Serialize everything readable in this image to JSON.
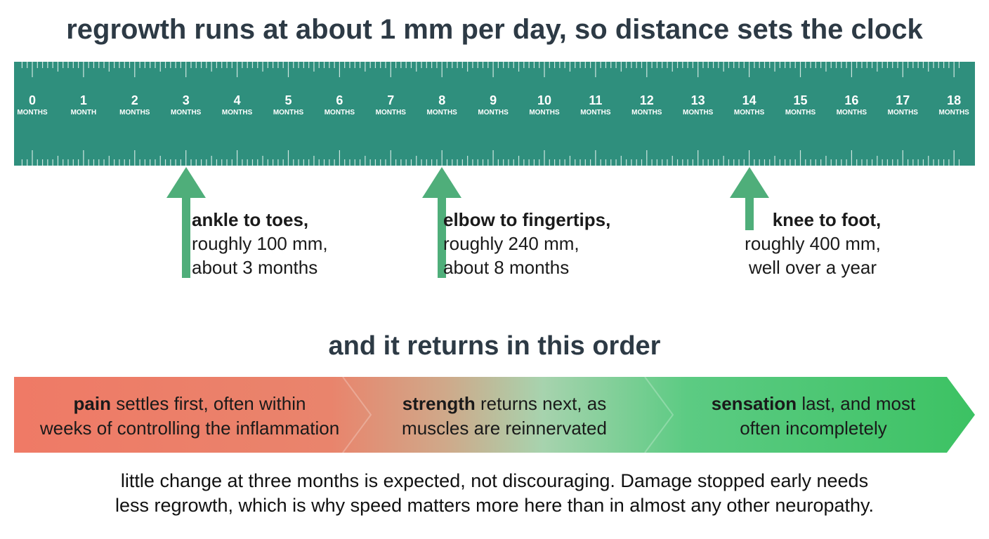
{
  "header": {
    "title": "regrowth runs at about 1 mm per day, so distance sets the clock"
  },
  "ruler": {
    "numbers": [
      0,
      1,
      2,
      3,
      4,
      5,
      6,
      7,
      8,
      9,
      10,
      11,
      12,
      13,
      14,
      15,
      16,
      17,
      18
    ],
    "units": [
      "MONTHS",
      "MONTH",
      "MONTHS",
      "MONTHS",
      "MONTHS",
      "MONTHS",
      "MONTHS",
      "MONTHS",
      "MONTHS",
      "MONTHS",
      "MONTHS",
      "MONTHS",
      "MONTHS",
      "MONTHS",
      "MONTHS",
      "MONTHS",
      "MONTHS",
      "MONTHS",
      "MONTHS"
    ]
  },
  "markers": [
    {
      "lines": [
        "ankle to toes,",
        "roughly 100 mm,",
        "about 3 months"
      ]
    },
    {
      "lines": [
        "elbow to fingertips,",
        "roughly 240 mm,",
        "about 8 months"
      ]
    },
    {
      "lines": [
        "knee to foot,",
        "roughly 400 mm,",
        "well over a year"
      ]
    }
  ],
  "order": {
    "title": "and it returns in this order",
    "stages": [
      {
        "lead": "pain",
        "line1": "settles first, often within",
        "line2": "weeks of controlling the inflammation"
      },
      {
        "lead": "strength",
        "line1": "returns next, as",
        "line2": "muscles are reinnervated"
      },
      {
        "lead": "sensation",
        "line1": "last, and most",
        "line2": "often incompletely"
      }
    ]
  },
  "footer": {
    "lines": [
      "little change at three months is expected, not discouraging. Damage stopped early needs",
      "less regrowth, which is why speed matters more here than in almost any other neuropathy."
    ]
  }
}
